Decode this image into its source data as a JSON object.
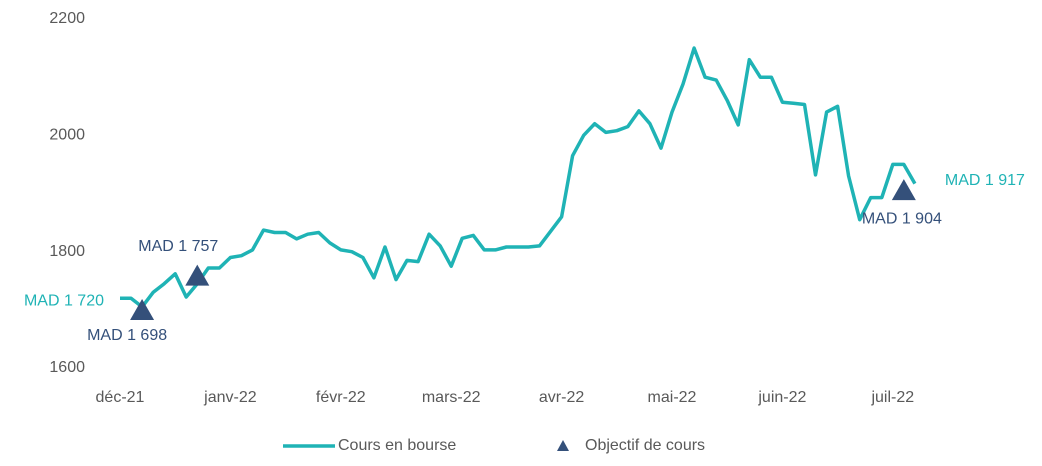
{
  "chart_data": {
    "type": "line",
    "categories": [
      "déc-21",
      null,
      null,
      null,
      null,
      null,
      null,
      null,
      null,
      null,
      "janv-22",
      null,
      null,
      null,
      null,
      null,
      null,
      null,
      null,
      null,
      "févr-22",
      null,
      null,
      null,
      null,
      null,
      null,
      null,
      null,
      null,
      "mars-22",
      null,
      null,
      null,
      null,
      null,
      null,
      null,
      null,
      null,
      "avr-22",
      null,
      null,
      null,
      null,
      null,
      null,
      null,
      null,
      null,
      "mai-22",
      null,
      null,
      null,
      null,
      null,
      null,
      null,
      null,
      null,
      "juin-22",
      null,
      null,
      null,
      null,
      null,
      null,
      null,
      null,
      null,
      "juil-22",
      null,
      null
    ],
    "series": [
      {
        "name": "Cours en bourse",
        "type": "line",
        "color": "#1fb3b5",
        "values": [
          1720,
          1720,
          1705,
          1730,
          1745,
          1762,
          1722,
          1745,
          1772,
          1772,
          1790,
          1793,
          1803,
          1837,
          1833,
          1833,
          1822,
          1830,
          1833,
          1815,
          1803,
          1800,
          1790,
          1755,
          1808,
          1752,
          1785,
          1783,
          1830,
          1810,
          1775,
          1823,
          1828,
          1803,
          1803,
          1808,
          1808,
          1808,
          1810,
          1835,
          1860,
          1965,
          2000,
          2020,
          2005,
          2008,
          2015,
          2042,
          2020,
          1978,
          2040,
          2088,
          2150,
          2100,
          2095,
          2060,
          2018,
          2130,
          2100,
          2100,
          2057,
          2055,
          2053,
          1932,
          2040,
          2050,
          1930,
          1855,
          1893,
          1893,
          1950,
          1950,
          1917
        ],
        "value_labels": [
          "MAD 1 720",
          null,
          null,
          null,
          null,
          null,
          null,
          null,
          null,
          null,
          null,
          null,
          null,
          null,
          null,
          null,
          null,
          null,
          null,
          null,
          null,
          null,
          null,
          null,
          null,
          null,
          null,
          null,
          null,
          null,
          null,
          null,
          null,
          null,
          null,
          null,
          null,
          null,
          null,
          null,
          null,
          null,
          null,
          null,
          null,
          null,
          null,
          null,
          null,
          null,
          null,
          null,
          null,
          null,
          null,
          null,
          null,
          null,
          null,
          null,
          null,
          null,
          null,
          null,
          null,
          null,
          null,
          null,
          null,
          null,
          null,
          null,
          "MAD 1 917"
        ]
      },
      {
        "name": "Objectif de cours",
        "type": "scatter",
        "color": "#34507a",
        "values": [
          null,
          null,
          1698,
          null,
          null,
          null,
          null,
          1757,
          null,
          null,
          null,
          null,
          null,
          null,
          null,
          null,
          null,
          null,
          null,
          null,
          null,
          null,
          null,
          null,
          null,
          null,
          null,
          null,
          null,
          null,
          null,
          null,
          null,
          null,
          null,
          null,
          null,
          null,
          null,
          null,
          null,
          null,
          null,
          null,
          null,
          null,
          null,
          null,
          null,
          null,
          null,
          null,
          null,
          null,
          null,
          null,
          null,
          null,
          null,
          null,
          null,
          null,
          null,
          null,
          null,
          null,
          null,
          null,
          null,
          null,
          null,
          1904,
          null
        ],
        "value_labels": [
          null,
          null,
          "MAD 1 698",
          null,
          null,
          null,
          null,
          "MAD 1 757",
          null,
          null,
          null,
          null,
          null,
          null,
          null,
          null,
          null,
          null,
          null,
          null,
          null,
          null,
          null,
          null,
          null,
          null,
          null,
          null,
          null,
          null,
          null,
          null,
          null,
          null,
          null,
          null,
          null,
          null,
          null,
          null,
          null,
          null,
          null,
          null,
          null,
          null,
          null,
          null,
          null,
          null,
          null,
          null,
          null,
          null,
          null,
          null,
          null,
          null,
          null,
          null,
          null,
          null,
          null,
          null,
          null,
          null,
          null,
          null,
          null,
          null,
          null,
          "MAD 1 904",
          null
        ]
      }
    ],
    "ylim": [
      1600,
      2200
    ],
    "yticks": [
      1600,
      1800,
      2000,
      2200
    ],
    "grid": false,
    "legend": "bottom"
  }
}
